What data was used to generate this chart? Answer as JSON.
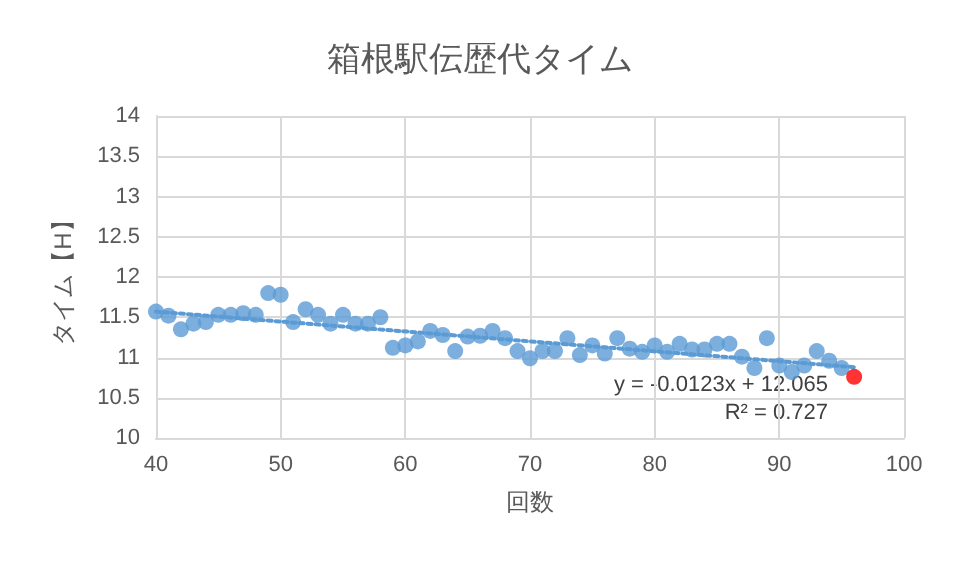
{
  "chart_data": {
    "type": "scatter",
    "title": "箱根駅伝歴代タイム",
    "xlabel": "回数",
    "ylabel": "タイム【H】",
    "xlim": [
      40,
      100
    ],
    "xticks": [
      40,
      50,
      60,
      70,
      80,
      90,
      100
    ],
    "ylim": [
      10,
      14
    ],
    "yticks": [
      10,
      10.5,
      11,
      11.5,
      12,
      12.5,
      13,
      13.5,
      14
    ],
    "grid": true,
    "marker": "circle",
    "series": [
      {
        "color": "#5b9bd5",
        "x": [
          40,
          41,
          42,
          43,
          44,
          45,
          46,
          47,
          48,
          49,
          50,
          51,
          52,
          53,
          54,
          55,
          56,
          57,
          58,
          59,
          60,
          61,
          62,
          63,
          64,
          65,
          66,
          67,
          68,
          69,
          70,
          71,
          72,
          73,
          74,
          75,
          76,
          77,
          78,
          79,
          80,
          81,
          82,
          83,
          84,
          85,
          86,
          87,
          88,
          89,
          90,
          91,
          92,
          93,
          94,
          95
        ],
        "values": [
          11.57,
          11.52,
          11.35,
          11.42,
          11.44,
          11.53,
          11.53,
          11.55,
          11.53,
          11.8,
          11.78,
          11.44,
          11.6,
          11.53,
          11.42,
          11.53,
          11.42,
          11.42,
          11.5,
          11.12,
          11.15,
          11.2,
          11.33,
          11.28,
          11.08,
          11.26,
          11.27,
          11.33,
          11.24,
          11.08,
          10.99,
          11.08,
          11.08,
          11.24,
          11.03,
          11.15,
          11.05,
          11.24,
          11.11,
          11.07,
          11.15,
          11.07,
          11.17,
          11.1,
          11.1,
          11.17,
          11.17,
          11.01,
          10.87,
          11.24,
          10.9,
          10.82,
          10.9,
          11.08,
          10.96,
          10.87
        ]
      },
      {
        "color": "#ff0000",
        "x": [
          96
        ],
        "values": [
          10.76
        ]
      },
      {
        "type": "line",
        "color": "#5b9bd5",
        "line_style": "dotted",
        "marker": "none",
        "x": [
          40,
          96
        ],
        "values": [
          11.57,
          10.88
        ]
      }
    ],
    "annotations": [
      "y = -0.0123x + 12.065",
      "R² = 0.727"
    ]
  }
}
